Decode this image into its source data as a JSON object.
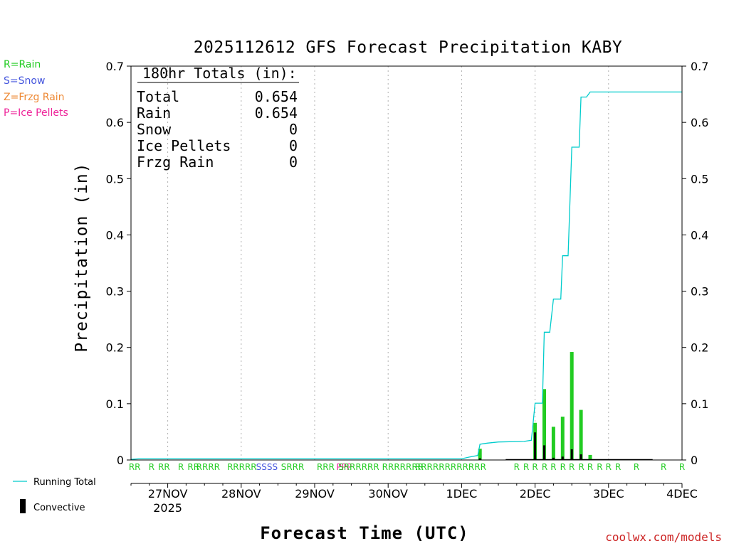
{
  "chart_data": {
    "type": "bar",
    "title": "2025112612 GFS Forecast Precipitation KABY",
    "xlabel": "Forecast Time (UTC)",
    "ylabel": "Precipitation (in)",
    "ylim": [
      0,
      0.7
    ],
    "y_ticks": [
      "0",
      "0.1",
      "0.2",
      "0.3",
      "0.4",
      "0.5",
      "0.6",
      "0.7"
    ],
    "x_range_days": [
      -0.5,
      7.0
    ],
    "x_tick_labels": [
      {
        "day": 0,
        "label": "27NOV",
        "sub": "2025"
      },
      {
        "day": 1,
        "label": "28NOV",
        "sub": ""
      },
      {
        "day": 2,
        "label": "29NOV",
        "sub": ""
      },
      {
        "day": 3,
        "label": "30NOV",
        "sub": ""
      },
      {
        "day": 4,
        "label": "1DEC",
        "sub": ""
      },
      {
        "day": 5,
        "label": "2DEC",
        "sub": ""
      },
      {
        "day": 6,
        "label": "3DEC",
        "sub": ""
      },
      {
        "day": 7,
        "label": "4DEC",
        "sub": ""
      }
    ],
    "grid": true,
    "totals": {
      "header": "180hr Totals (in):",
      "rows": [
        {
          "label": "Total",
          "value": "0.654"
        },
        {
          "label": "Rain",
          "value": "0.654"
        },
        {
          "label": "Snow",
          "value": "0"
        },
        {
          "label": "Ice Pellets",
          "value": "0"
        },
        {
          "label": "Frzg Rain",
          "value": "0"
        }
      ]
    },
    "legend_types": [
      {
        "text": "R=Rain",
        "color": "#22cc22"
      },
      {
        "text": "S=Snow",
        "color": "#4455dd"
      },
      {
        "text": "Z=Frzg Rain",
        "color": "#ee8833"
      },
      {
        "text": "P=Ice Pellets",
        "color": "#ee2299"
      }
    ],
    "legend_lines": [
      {
        "text": "Running Total",
        "color": "#00cccc"
      },
      {
        "text": "Convective",
        "color": "#000000"
      }
    ],
    "precip_bars": [
      {
        "day": 4.25,
        "total": 0.02,
        "conv": 0.003
      },
      {
        "day": 5.0,
        "total": 0.066,
        "conv": 0.049
      },
      {
        "day": 5.125,
        "total": 0.126,
        "conv": 0.026
      },
      {
        "day": 5.25,
        "total": 0.059,
        "conv": 0.004
      },
      {
        "day": 5.375,
        "total": 0.077,
        "conv": 0.006
      },
      {
        "day": 5.5,
        "total": 0.192,
        "conv": 0.019
      },
      {
        "day": 5.625,
        "total": 0.089,
        "conv": 0.01
      },
      {
        "day": 5.75,
        "total": 0.009,
        "conv": 0.0
      }
    ],
    "running_total": [
      [
        -0.5,
        0.001
      ],
      [
        -0.4,
        0.002
      ],
      [
        4.0,
        0.002
      ],
      [
        4.1,
        0.005
      ],
      [
        4.22,
        0.008
      ],
      [
        4.25,
        0.028
      ],
      [
        4.35,
        0.03
      ],
      [
        4.5,
        0.032
      ],
      [
        4.85,
        0.033
      ],
      [
        4.95,
        0.035
      ],
      [
        5.0,
        0.101
      ],
      [
        5.1,
        0.101
      ],
      [
        5.125,
        0.227
      ],
      [
        5.2,
        0.227
      ],
      [
        5.25,
        0.286
      ],
      [
        5.35,
        0.286
      ],
      [
        5.375,
        0.363
      ],
      [
        5.45,
        0.363
      ],
      [
        5.5,
        0.556
      ],
      [
        5.6,
        0.556
      ],
      [
        5.625,
        0.645
      ],
      [
        5.7,
        0.645
      ],
      [
        5.75,
        0.654
      ],
      [
        7.0,
        0.654
      ]
    ],
    "ptype_labels": [
      {
        "day": -0.45,
        "t": "RR",
        "c": "R"
      },
      {
        "day": -0.22,
        "t": "R",
        "c": "R"
      },
      {
        "day": -0.05,
        "t": "RR",
        "c": "R"
      },
      {
        "day": 0.18,
        "t": "R",
        "c": "R"
      },
      {
        "day": 0.35,
        "t": "RR",
        "c": "R"
      },
      {
        "day": 0.55,
        "t": "RRRR",
        "c": "R"
      },
      {
        "day": 0.85,
        "t": "R",
        "c": "R"
      },
      {
        "day": 1.05,
        "t": "RRRR",
        "c": "R"
      },
      {
        "day": 1.35,
        "t": "SSSS",
        "c": "S"
      },
      {
        "day": 1.7,
        "t": "SRRR",
        "c": "R"
      },
      {
        "day": 2.15,
        "t": "RRR",
        "c": "R"
      },
      {
        "day": 2.4,
        "t": "PPP",
        "c": "P"
      },
      {
        "day": 2.6,
        "t": "SRRRRRR",
        "c": "R"
      },
      {
        "day": 3.2,
        "t": "RRRRRRR",
        "c": "R"
      },
      {
        "day": 3.85,
        "t": "RRRRRRRRRRRR",
        "c": "R"
      },
      {
        "day": 4.75,
        "t": "R",
        "c": "R"
      },
      {
        "day": 4.88,
        "t": "R",
        "c": "R"
      },
      {
        "day": 5.0,
        "t": "R",
        "c": "R"
      },
      {
        "day": 5.13,
        "t": "R",
        "c": "R"
      },
      {
        "day": 5.25,
        "t": "R",
        "c": "R"
      },
      {
        "day": 5.38,
        "t": "R",
        "c": "R"
      },
      {
        "day": 5.5,
        "t": "R",
        "c": "R"
      },
      {
        "day": 5.63,
        "t": "R",
        "c": "R"
      },
      {
        "day": 5.75,
        "t": "R",
        "c": "R"
      },
      {
        "day": 5.88,
        "t": "R",
        "c": "R"
      },
      {
        "day": 6.0,
        "t": "R",
        "c": "R"
      },
      {
        "day": 6.13,
        "t": "R",
        "c": "R"
      },
      {
        "day": 6.38,
        "t": "R",
        "c": "R"
      },
      {
        "day": 6.75,
        "t": "R",
        "c": "R"
      },
      {
        "day": 7.0,
        "t": "R",
        "c": "R"
      }
    ],
    "colors": {
      "rain": "#22cc22",
      "snow": "#4455dd",
      "frzg": "#ee8833",
      "pellets": "#ee2299",
      "running": "#00cccc",
      "convective": "#000000"
    }
  },
  "watermark": "coolwx.com/models"
}
